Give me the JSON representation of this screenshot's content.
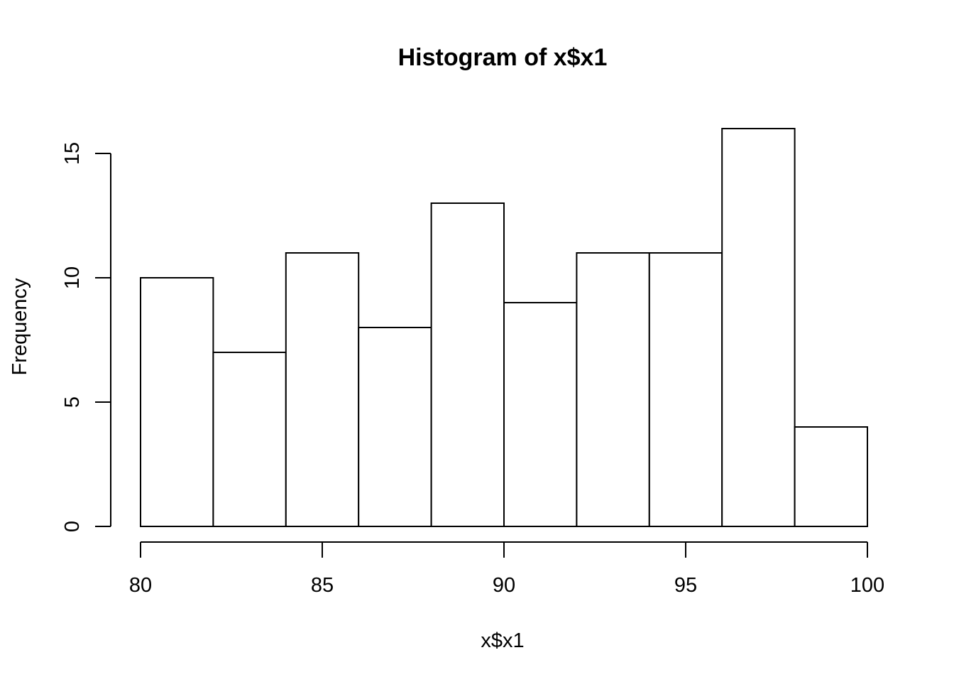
{
  "chart_data": {
    "type": "bar",
    "title": "Histogram of x$x1",
    "xlabel": "x$x1",
    "ylabel": "Frequency",
    "bins": [
      {
        "start": 80,
        "end": 82,
        "count": 10
      },
      {
        "start": 82,
        "end": 84,
        "count": 7
      },
      {
        "start": 84,
        "end": 86,
        "count": 11
      },
      {
        "start": 86,
        "end": 88,
        "count": 8
      },
      {
        "start": 88,
        "end": 90,
        "count": 13
      },
      {
        "start": 90,
        "end": 92,
        "count": 9
      },
      {
        "start": 92,
        "end": 94,
        "count": 11
      },
      {
        "start": 94,
        "end": 96,
        "count": 11
      },
      {
        "start": 96,
        "end": 98,
        "count": 16
      },
      {
        "start": 98,
        "end": 100,
        "count": 4
      }
    ],
    "xlim": [
      80,
      100
    ],
    "ylim": [
      0,
      16
    ],
    "x_ticks": [
      "80",
      "85",
      "90",
      "95",
      "100"
    ],
    "y_ticks": [
      "0",
      "5",
      "10",
      "15"
    ],
    "grid": false,
    "colors": {
      "bar_fill": "#ffffff",
      "bar_stroke": "#000000"
    }
  }
}
